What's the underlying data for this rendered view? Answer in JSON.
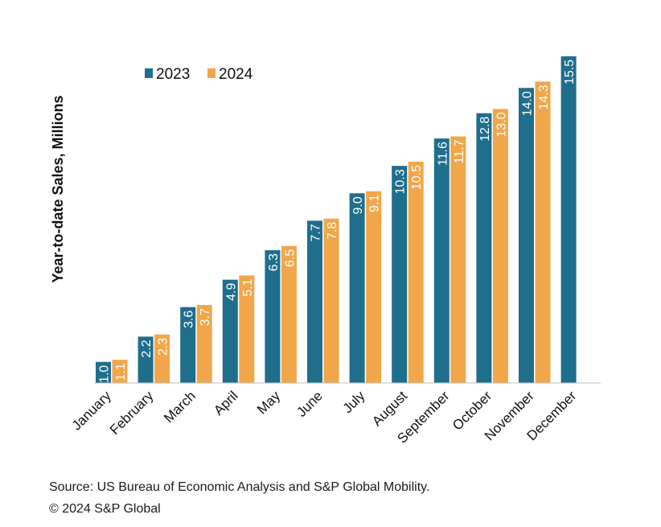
{
  "chart_data": {
    "type": "bar",
    "title": "",
    "xlabel": "",
    "ylabel": "Year-to-date Sales, Millions",
    "ylim": [
      0,
      16
    ],
    "grid": false,
    "legend_placement": "top-left",
    "categories": [
      "January",
      "February",
      "March",
      "April",
      "May",
      "June",
      "July",
      "August",
      "September",
      "October",
      "November",
      "December"
    ],
    "series": [
      {
        "name": "2023",
        "color": "#1f6e8c",
        "values": [
          1.0,
          2.2,
          3.6,
          4.9,
          6.3,
          7.7,
          9.0,
          10.3,
          11.6,
          12.8,
          14.0,
          15.5
        ],
        "labels": [
          "1.0",
          "2.2",
          "3.6",
          "4.9",
          "6.3",
          "7.7",
          "9.0",
          "10.3",
          "11.6",
          "12.8",
          "14.0",
          "15.5"
        ]
      },
      {
        "name": "2024",
        "color": "#f2a64a",
        "values": [
          1.1,
          2.3,
          3.7,
          5.1,
          6.5,
          7.8,
          9.1,
          10.5,
          11.7,
          13.0,
          14.3,
          null
        ],
        "labels": [
          "1.1",
          "2.3",
          "3.7",
          "5.1",
          "6.5",
          "7.8",
          "9.1",
          "10.5",
          "11.7",
          "13.0",
          "14.3",
          null
        ]
      }
    ]
  },
  "footer": {
    "source": "Source: US Bureau of Economic Analysis and S&P Global Mobility.",
    "copyright": "© 2024 S&P Global"
  }
}
